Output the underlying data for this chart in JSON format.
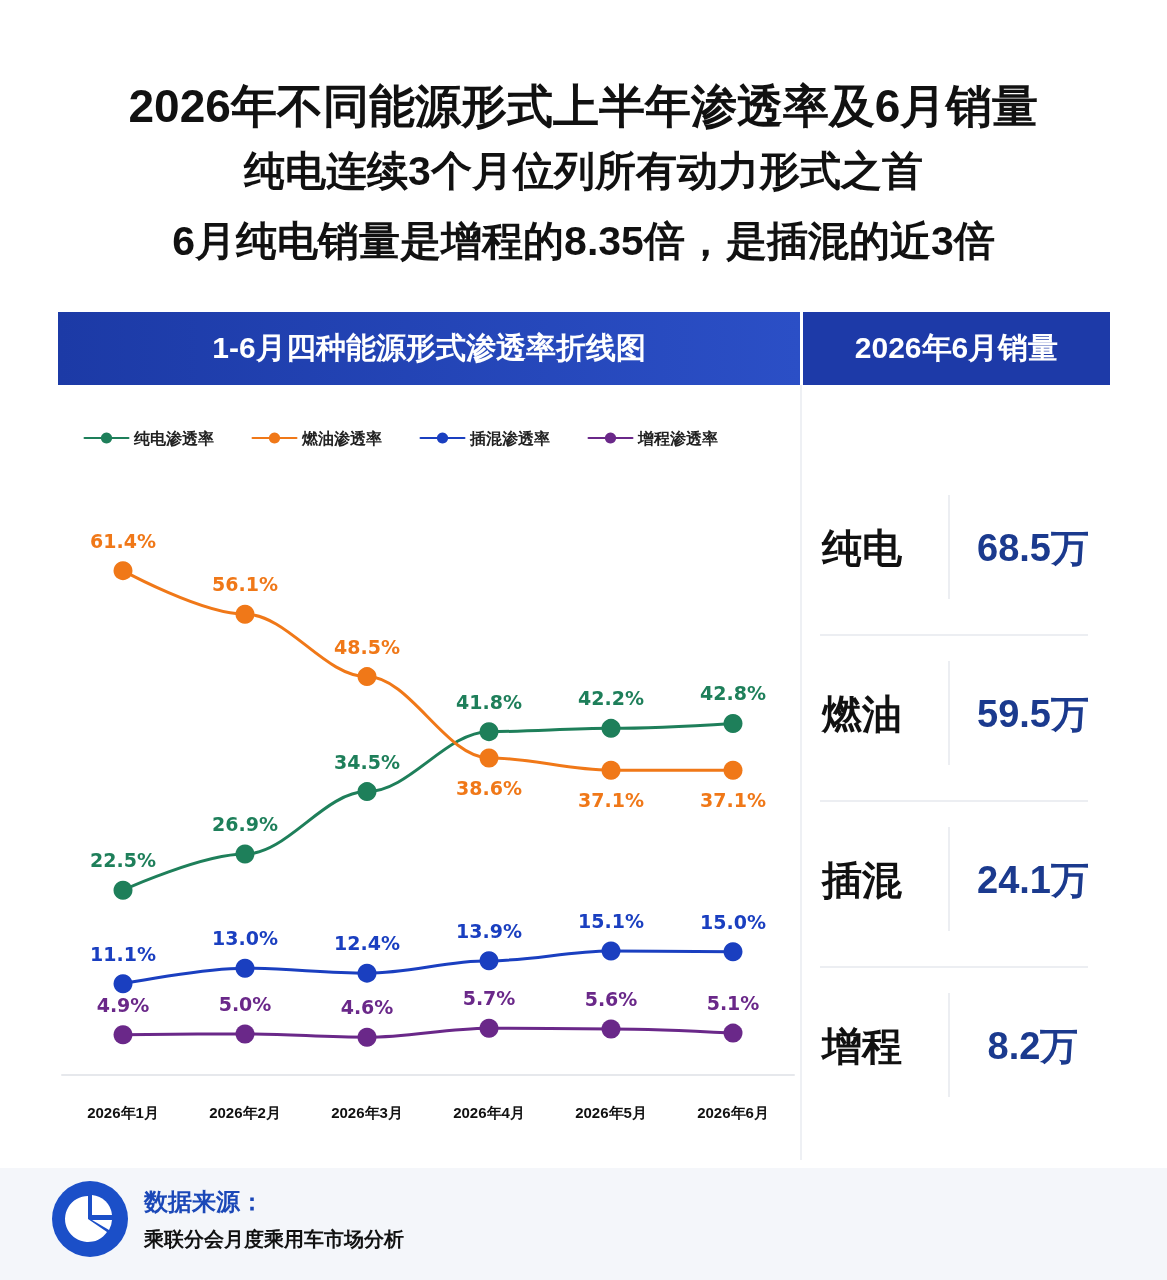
{
  "chart_data": [
    {
      "type": "other",
      "title": "2026年不同能源形式上半年渗透率及6月销量",
      "annotations": [
        "纯电连续3个月位列所有动力形式之首",
        "6月纯电销量是增程的8.35倍，是插混的近3倍"
      ]
    },
    {
      "type": "line",
      "title": "1-6月四种能源形式渗透率折线图",
      "categories": [
        "2026年1月",
        "2026年2月",
        "2026年3月",
        "2026年4月",
        "2026年5月",
        "2026年6月"
      ],
      "series": [
        {
          "name": "纯电渗透率",
          "color": "#1e7f5a",
          "values": [
            22.5,
            26.9,
            34.5,
            41.8,
            42.2,
            42.8
          ],
          "value_labels": [
            "22.5%",
            "26.9%",
            "34.5%",
            "41.8%",
            "42.2%",
            "42.8%"
          ]
        },
        {
          "name": "燃油渗透率",
          "color": "#f07818",
          "values": [
            61.4,
            56.1,
            48.5,
            38.6,
            37.1,
            37.1
          ],
          "value_labels": [
            "61.4%",
            "56.1%",
            "48.5%",
            "38.6%",
            "37.1%",
            "37.1%"
          ]
        },
        {
          "name": "插混渗透率",
          "color": "#1a3fc0",
          "values": [
            11.1,
            13.0,
            12.4,
            13.9,
            15.1,
            15.0
          ],
          "value_labels": [
            "11.1%",
            "13.0%",
            "12.4%",
            "13.9%",
            "15.1%",
            "15.0%"
          ]
        },
        {
          "name": "增程渗透率",
          "color": "#6a2889",
          "values": [
            4.9,
            5.0,
            4.6,
            5.7,
            5.6,
            5.1
          ],
          "value_labels": [
            "4.9%",
            "5.0%",
            "4.6%",
            "5.7%",
            "5.6%",
            "5.1%"
          ]
        }
      ],
      "legend": "top",
      "marker": "circle",
      "line_style": "solid",
      "tick_labels": "x",
      "annotations": [
        "数据来源：",
        "乘联分会月度乘用车市场分析"
      ]
    },
    {
      "type": "other",
      "title": "2026年6月销量",
      "categories": [
        "纯电",
        "燃油",
        "插混",
        "增程"
      ],
      "value_labels": [
        "68.5万",
        "59.5万",
        "24.1万",
        "8.2万"
      ]
    }
  ]
}
